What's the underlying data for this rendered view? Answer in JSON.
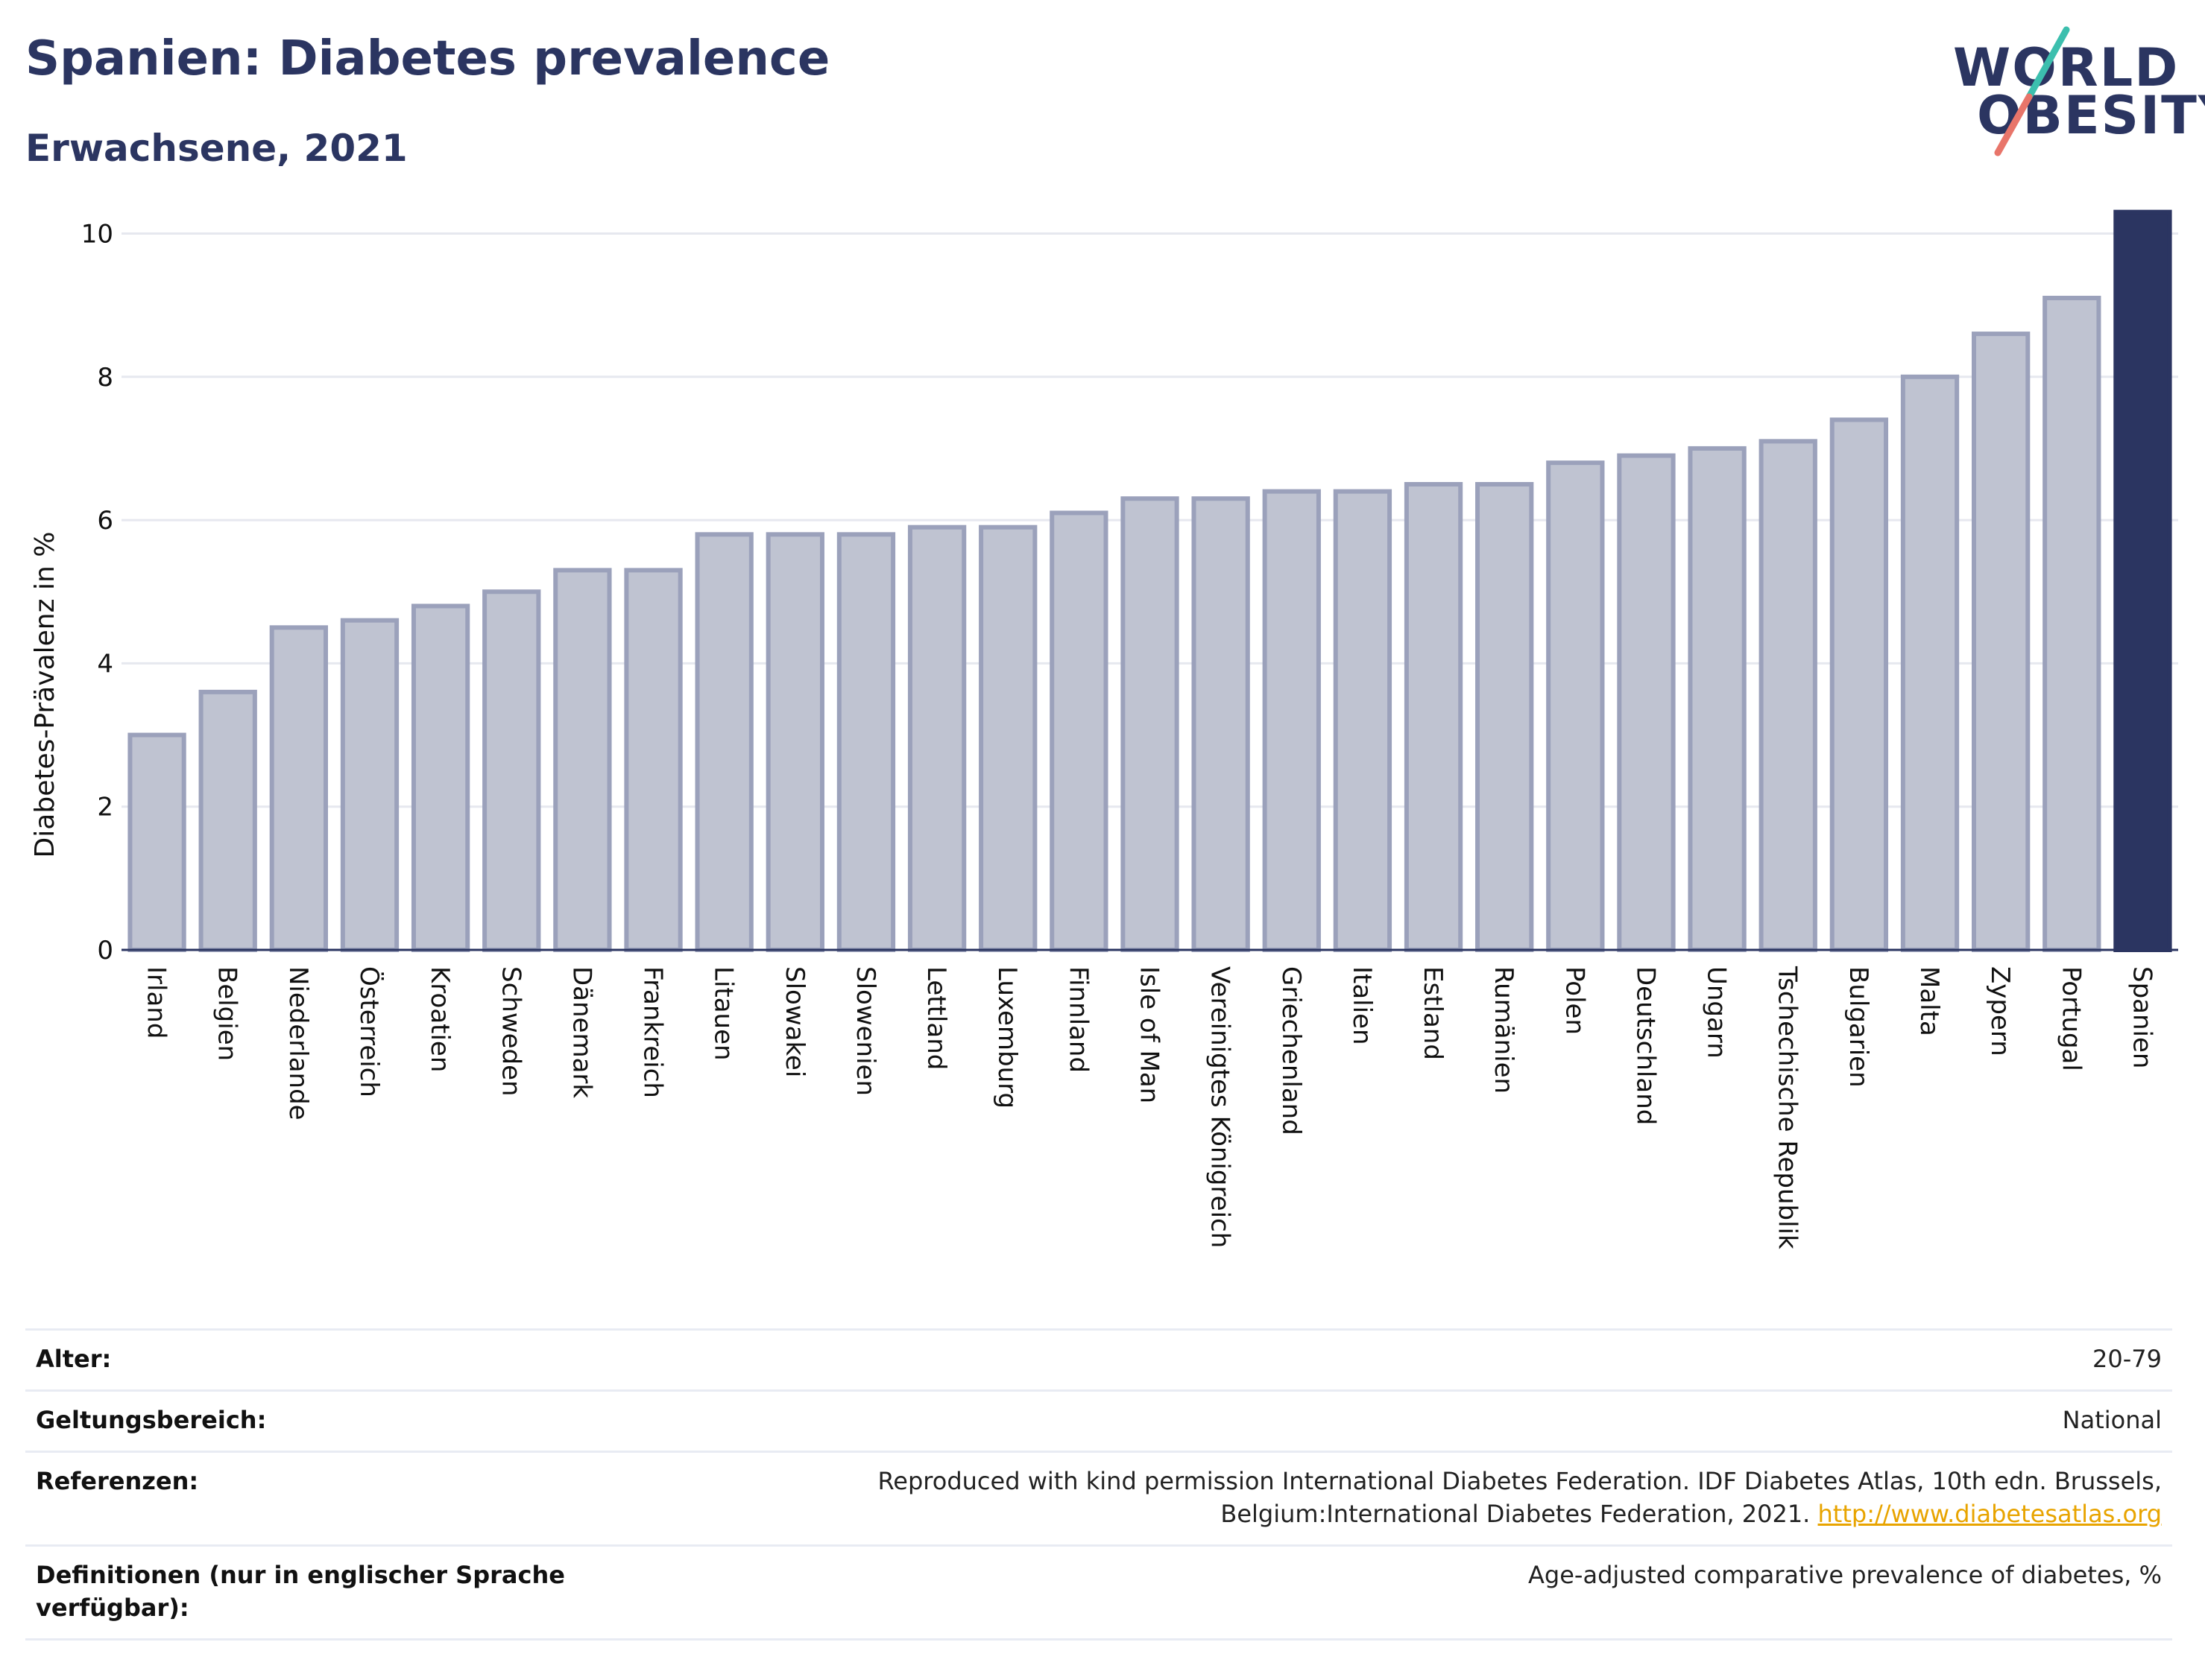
{
  "header": {
    "title": "Spanien: Diabetes prevalence",
    "subtitle": "Erwachsene, 2021"
  },
  "logo": {
    "line1": "WORLD",
    "line2": "OBESITY",
    "slash_color_top": "#3cbfae",
    "slash_color_bottom": "#e8756a"
  },
  "chart_data": {
    "type": "bar",
    "ylabel": "Diabetes-Prävalenz in %",
    "ylim": [
      0,
      10.4
    ],
    "yticks": [
      0,
      2,
      4,
      6,
      8,
      10
    ],
    "grid": true,
    "highlight_category": "Spanien",
    "colors": {
      "bar": "#bfc3d1",
      "bar_edge": "#9ba1bb",
      "highlight": "#2b3561",
      "grid": "#e6e8ef"
    },
    "categories": [
      "Irland",
      "Belgien",
      "Niederlande",
      "Österreich",
      "Kroatien",
      "Schweden",
      "Dänemark",
      "Frankreich",
      "Litauen",
      "Slowakei",
      "Slowenien",
      "Lettland",
      "Luxemburg",
      "Finnland",
      "Isle of Man",
      "Vereinigtes Königreich",
      "Griechenland",
      "Italien",
      "Estland",
      "Rumänien",
      "Polen",
      "Deutschland",
      "Ungarn",
      "Tschechische Republik",
      "Bulgarien",
      "Malta",
      "Zypern",
      "Portugal",
      "Spanien"
    ],
    "values": [
      3.0,
      3.6,
      4.5,
      4.6,
      4.8,
      5.0,
      5.3,
      5.3,
      5.8,
      5.8,
      5.8,
      5.9,
      5.9,
      6.1,
      6.3,
      6.3,
      6.4,
      6.4,
      6.5,
      6.5,
      6.8,
      6.9,
      7.0,
      7.1,
      7.4,
      8.0,
      8.6,
      9.1,
      10.3
    ]
  },
  "details": [
    {
      "label": "Alter:",
      "value": "20-79"
    },
    {
      "label": "Geltungsbereich:",
      "value": "National"
    },
    {
      "label": "Referenzen:",
      "value": "Reproduced with kind permission International Diabetes Federation.  IDF Diabetes Atlas, 10th edn. Brussels, Belgium:International Diabetes Federation, 2021.",
      "link": "http://www.diabetesatlas.org"
    },
    {
      "label": "Definitionen (nur in englischer Sprache verfügbar):",
      "value": "Age-adjusted comparative prevalence of diabetes, %"
    }
  ]
}
